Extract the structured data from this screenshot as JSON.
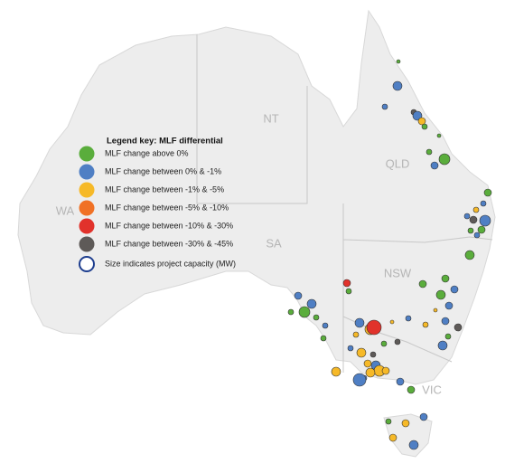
{
  "legend": {
    "title": "Legend key: MLF differential",
    "items": [
      {
        "label": "MLF change above 0%",
        "color": "#5aad3c"
      },
      {
        "label": "MLF change between 0% & -1%",
        "color": "#4f7fc4"
      },
      {
        "label": "MLF change between -1% & -5%",
        "color": "#f6b928"
      },
      {
        "label": "MLF change between -5% & -10%",
        "color": "#f07125"
      },
      {
        "label": "MLF change between -10% & -30%",
        "color": "#e1322b"
      },
      {
        "label": "MLF change between -30% & -45%",
        "color": "#5e5a58"
      }
    ],
    "size_note": "Size indicates project capacity (MW)"
  },
  "states": [
    "NT",
    "QLD",
    "WA",
    "SA",
    "NSW",
    "VIC"
  ]
}
